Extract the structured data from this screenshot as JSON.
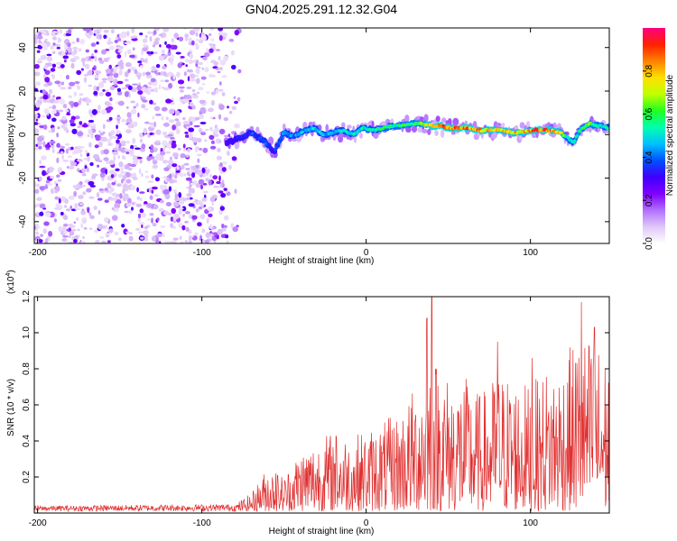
{
  "figure": {
    "title": "GN04.2025.291.12.32.G04"
  },
  "chart_data": [
    {
      "type": "heatmap",
      "title": "GN04.2025.291.12.32.G04",
      "xlabel": "Height of straight line (km)",
      "ylabel": "Frequency (Hz)",
      "xlim": [
        -202,
        148
      ],
      "ylim": [
        -50,
        49
      ],
      "x_ticks": [
        -200,
        -100,
        0,
        100
      ],
      "y_ticks": [
        -40,
        -20,
        0,
        20,
        40
      ],
      "colorbar": {
        "label": "Normalized spectral amplitude",
        "range": [
          0,
          1
        ],
        "ticks": [
          "0.0",
          "0.2",
          "0.4",
          "0.6",
          "0.8"
        ],
        "stops": [
          "#ffffff",
          "#e0c8f8",
          "#b070ff",
          "#8000ff",
          "#3f00ff",
          "#0050ff",
          "#00c0ff",
          "#00ffb0",
          "#20ff20",
          "#c0ff00",
          "#ffe000",
          "#ff8000",
          "#ff2000",
          "#ff0080"
        ]
      },
      "noise_region_end_km": -85,
      "ridge": {
        "x": [
          -85,
          -78,
          -70,
          -62,
          -56,
          -50,
          -44,
          -38,
          -32,
          -26,
          -20,
          -14,
          -8,
          -2,
          4,
          10,
          16,
          22,
          28,
          34,
          40,
          46,
          52,
          58,
          64,
          70,
          76,
          82,
          88,
          94,
          100,
          106,
          112,
          118,
          122,
          126,
          130,
          136,
          142,
          148
        ],
        "freq": [
          -4,
          -2,
          1,
          -3,
          -8,
          1,
          -1,
          2,
          3,
          0,
          1,
          2,
          0,
          3,
          2,
          3,
          4,
          4,
          5,
          5,
          4,
          4,
          3,
          3,
          3,
          2,
          2,
          2,
          1,
          1,
          2,
          2,
          2,
          1,
          -1,
          -4,
          2,
          5,
          4,
          3
        ],
        "amp": [
          0.3,
          0.35,
          0.4,
          0.4,
          0.35,
          0.45,
          0.45,
          0.5,
          0.5,
          0.5,
          0.5,
          0.5,
          0.55,
          0.55,
          0.55,
          0.6,
          0.6,
          0.62,
          0.65,
          0.7,
          0.9,
          0.95,
          0.9,
          0.95,
          0.9,
          0.85,
          0.85,
          0.8,
          0.85,
          0.8,
          0.9,
          0.95,
          0.9,
          0.8,
          0.6,
          0.55,
          0.6,
          0.65,
          0.6,
          0.55
        ]
      }
    },
    {
      "type": "line",
      "title": "",
      "xlabel": "Height of straight line (km)",
      "ylabel": "SNR (10 * v/v)",
      "y_scale_label": "(x10",
      "y_scale_exponent": "4",
      "y_scale_close": ")",
      "xlim": [
        -202,
        148
      ],
      "ylim": [
        0,
        1.2
      ],
      "x_ticks": [
        -200,
        -100,
        0,
        100
      ],
      "y_ticks": [
        0.2,
        0.4,
        0.6,
        0.8,
        1.0,
        1.2
      ],
      "color": "#e03030",
      "envelope": {
        "x": [
          -202,
          -80,
          -70,
          -60,
          -50,
          -40,
          -30,
          -20,
          -10,
          0,
          10,
          20,
          30,
          40,
          50,
          60,
          70,
          80,
          90,
          100,
          110,
          120,
          130,
          140,
          148
        ],
        "max": [
          0.03,
          0.04,
          0.1,
          0.25,
          0.2,
          0.35,
          0.4,
          0.45,
          0.42,
          0.45,
          0.5,
          0.55,
          0.7,
          0.9,
          0.75,
          0.75,
          0.65,
          0.78,
          0.75,
          0.7,
          0.8,
          0.85,
          1.0,
          0.95,
          0.85
        ]
      },
      "peaks": [
        {
          "x": -55,
          "y": 0.22
        },
        {
          "x": -18,
          "y": 0.42
        },
        {
          "x": 40,
          "y": 1.2
        },
        {
          "x": 37,
          "y": 1.08
        },
        {
          "x": 80,
          "y": 0.95
        },
        {
          "x": 101,
          "y": 0.86
        },
        {
          "x": 131,
          "y": 1.17
        },
        {
          "x": 139,
          "y": 1.03
        }
      ]
    }
  ]
}
